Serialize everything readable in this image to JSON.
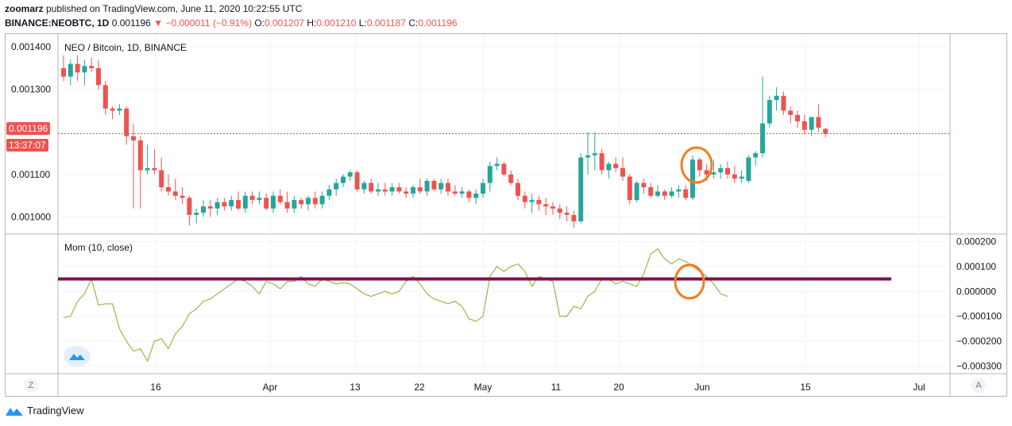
{
  "header": {
    "publisher_user": "zoomarz",
    "published_text": "published on TradingView.com, June 11, 2020 10:22:55 UTC",
    "symbol": "BINANCE:NEOBTC, 1D",
    "last": "0.001196",
    "change": "−0.000011 (−0.91%)",
    "o_label": "O:",
    "o_val": "0.001207",
    "h_label": "H:",
    "h_val": "0.001210",
    "l_label": "L:",
    "l_val": "0.001187",
    "c_label": "C:",
    "c_val": "0.001196"
  },
  "main_pane": {
    "title": "NEO / Bitcoin, 1D, BINANCE",
    "current_price": "0.001196",
    "countdown": "13:37:07"
  },
  "indicator_pane": {
    "title": "Mom (10, close)"
  },
  "footer": {
    "brand": "TradingView",
    "left_corner": "Z",
    "right_corner": "A"
  },
  "colors": {
    "up": "#26a69a",
    "down": "#ef5350",
    "momentum_line": "#a7b04a",
    "hline": "#7b1451",
    "annotation": "#f57c20",
    "price_line": "#ef5350"
  },
  "chart_data": [
    {
      "type": "candlestick",
      "title": "NEO / Bitcoin, 1D, BINANCE",
      "x_ticks": [
        "16",
        "Apr",
        "13",
        "22",
        "May",
        "11",
        "20",
        "Jun",
        "15",
        "Jul"
      ],
      "y_ticks": [
        "0.001400",
        "0.001300",
        "0.001100",
        "0.001000"
      ],
      "ylim": [
        0.00096,
        0.00143
      ],
      "candles": [
        [
          0.00135,
          0.00138,
          0.00132,
          0.00133
        ],
        [
          0.00133,
          0.00137,
          0.00131,
          0.00136
        ],
        [
          0.00136,
          0.00138,
          0.00132,
          0.00134
        ],
        [
          0.00134,
          0.00137,
          0.00131,
          0.001355
        ],
        [
          0.001355,
          0.001375,
          0.00134,
          0.00135
        ],
        [
          0.00135,
          0.00137,
          0.0013,
          0.00131
        ],
        [
          0.00131,
          0.00132,
          0.00124,
          0.001255
        ],
        [
          0.001255,
          0.00126,
          0.00123,
          0.00125
        ],
        [
          0.00125,
          0.001265,
          0.00124,
          0.001255
        ],
        [
          0.001255,
          0.00126,
          0.00117,
          0.00119
        ],
        [
          0.00119,
          0.00122,
          0.00102,
          0.00118
        ],
        [
          0.00118,
          0.00119,
          0.00102,
          0.00111
        ],
        [
          0.00111,
          0.00117,
          0.0011,
          0.001115
        ],
        [
          0.001115,
          0.00116,
          0.0011,
          0.00111
        ],
        [
          0.00111,
          0.00114,
          0.00106,
          0.00107
        ],
        [
          0.00107,
          0.0011,
          0.00105,
          0.00106
        ],
        [
          0.00106,
          0.00109,
          0.00104,
          0.00105
        ],
        [
          0.00105,
          0.00107,
          0.00103,
          0.001045
        ],
        [
          0.001045,
          0.00105,
          0.00098,
          0.001005
        ],
        [
          0.001005,
          0.00102,
          0.000985,
          0.00101
        ],
        [
          0.00101,
          0.00104,
          0.001,
          0.001025
        ],
        [
          0.001025,
          0.00104,
          0.001,
          0.00102
        ],
        [
          0.00102,
          0.001045,
          0.001005,
          0.001035
        ],
        [
          0.001035,
          0.001045,
          0.001015,
          0.001025
        ],
        [
          0.001025,
          0.00105,
          0.001015,
          0.00104
        ],
        [
          0.00104,
          0.00106,
          0.001015,
          0.00102
        ],
        [
          0.00102,
          0.00106,
          0.00101,
          0.00105
        ],
        [
          0.00105,
          0.00106,
          0.00103,
          0.00104
        ],
        [
          0.00104,
          0.00106,
          0.00103,
          0.001045
        ],
        [
          0.001045,
          0.001055,
          0.001015,
          0.00102
        ],
        [
          0.00102,
          0.00106,
          0.00101,
          0.00105
        ],
        [
          0.00105,
          0.001065,
          0.00103,
          0.001035
        ],
        [
          0.001035,
          0.00106,
          0.00101,
          0.00102
        ],
        [
          0.00102,
          0.00105,
          0.00101,
          0.00104
        ],
        [
          0.00104,
          0.001045,
          0.00102,
          0.00103
        ],
        [
          0.00103,
          0.00105,
          0.001015,
          0.001045
        ],
        [
          0.001045,
          0.00106,
          0.00102,
          0.00103
        ],
        [
          0.00103,
          0.00106,
          0.00102,
          0.00105
        ],
        [
          0.00105,
          0.001075,
          0.00104,
          0.001065
        ],
        [
          0.001065,
          0.00109,
          0.00105,
          0.00108
        ],
        [
          0.00108,
          0.0011,
          0.00107,
          0.001095
        ],
        [
          0.001095,
          0.00111,
          0.001085,
          0.001105
        ],
        [
          0.001105,
          0.00111,
          0.00106,
          0.001065
        ],
        [
          0.001065,
          0.001085,
          0.001055,
          0.00108
        ],
        [
          0.00108,
          0.00109,
          0.001055,
          0.00106
        ],
        [
          0.00106,
          0.00108,
          0.00105,
          0.001065
        ],
        [
          0.001065,
          0.00108,
          0.00105,
          0.00106
        ],
        [
          0.00106,
          0.00108,
          0.00105,
          0.00107
        ],
        [
          0.00107,
          0.00108,
          0.001055,
          0.00106
        ],
        [
          0.00106,
          0.00107,
          0.001045,
          0.001055
        ],
        [
          0.001055,
          0.001075,
          0.001045,
          0.00107
        ],
        [
          0.00107,
          0.00109,
          0.001055,
          0.00106
        ],
        [
          0.00106,
          0.00109,
          0.00105,
          0.001085
        ],
        [
          0.001085,
          0.00109,
          0.00106,
          0.001065
        ],
        [
          0.001065,
          0.00109,
          0.001055,
          0.00108
        ],
        [
          0.00108,
          0.00109,
          0.00105,
          0.00106
        ],
        [
          0.00106,
          0.001075,
          0.00105,
          0.001055
        ],
        [
          0.001055,
          0.00107,
          0.001045,
          0.00106
        ],
        [
          0.00106,
          0.001065,
          0.001035,
          0.001045
        ],
        [
          0.001045,
          0.001065,
          0.00103,
          0.001055
        ],
        [
          0.001055,
          0.00109,
          0.001045,
          0.00108
        ],
        [
          0.00108,
          0.00113,
          0.00106,
          0.00112
        ],
        [
          0.00112,
          0.00114,
          0.00111,
          0.001125
        ],
        [
          0.001125,
          0.00113,
          0.001095,
          0.0011
        ],
        [
          0.0011,
          0.00111,
          0.001075,
          0.00108
        ],
        [
          0.00108,
          0.00109,
          0.00104,
          0.00105
        ],
        [
          0.00105,
          0.00106,
          0.00102,
          0.001035
        ],
        [
          0.001035,
          0.001055,
          0.00101,
          0.00104
        ],
        [
          0.00104,
          0.00105,
          0.001015,
          0.00103
        ],
        [
          0.00103,
          0.001045,
          0.001005,
          0.001025
        ],
        [
          0.001025,
          0.001035,
          0.001005,
          0.00102
        ],
        [
          0.00102,
          0.00103,
          0.000995,
          0.00101
        ],
        [
          0.00101,
          0.001025,
          0.00099,
          0.001005
        ],
        [
          0.001005,
          0.001015,
          0.000975,
          0.00099
        ],
        [
          0.00099,
          0.00115,
          0.000985,
          0.00114
        ],
        [
          0.00114,
          0.0012,
          0.0011,
          0.001145
        ],
        [
          0.001145,
          0.0012,
          0.00111,
          0.00115
        ],
        [
          0.00115,
          0.00116,
          0.0011,
          0.00111
        ],
        [
          0.00111,
          0.00113,
          0.00109,
          0.001125
        ],
        [
          0.001125,
          0.00114,
          0.001105,
          0.001115
        ],
        [
          0.001115,
          0.00114,
          0.001085,
          0.001095
        ],
        [
          0.001095,
          0.0011,
          0.00103,
          0.00104
        ],
        [
          0.00104,
          0.001085,
          0.001035,
          0.00108
        ],
        [
          0.00108,
          0.00109,
          0.001055,
          0.00107
        ],
        [
          0.00107,
          0.00108,
          0.001045,
          0.00105
        ],
        [
          0.00105,
          0.001075,
          0.001045,
          0.00106
        ],
        [
          0.00106,
          0.001065,
          0.00104,
          0.00105
        ],
        [
          0.00105,
          0.00107,
          0.001045,
          0.00106
        ],
        [
          0.00106,
          0.001075,
          0.001045,
          0.001065
        ],
        [
          0.001065,
          0.001075,
          0.00104,
          0.001045
        ],
        [
          0.001045,
          0.001145,
          0.00104,
          0.001135
        ],
        [
          0.001135,
          0.00114,
          0.001095,
          0.00111
        ],
        [
          0.00111,
          0.001125,
          0.001085,
          0.0011
        ],
        [
          0.0011,
          0.001135,
          0.00109,
          0.001105
        ],
        [
          0.001105,
          0.001125,
          0.00109,
          0.001115
        ],
        [
          0.001115,
          0.00113,
          0.00109,
          0.0011
        ],
        [
          0.0011,
          0.00112,
          0.00108,
          0.00109
        ],
        [
          0.00109,
          0.00111,
          0.00108,
          0.001095
        ],
        [
          0.001085,
          0.001145,
          0.00108,
          0.00114
        ],
        [
          0.00114,
          0.001155,
          0.00112,
          0.00115
        ],
        [
          0.00115,
          0.00133,
          0.00114,
          0.00122
        ],
        [
          0.00122,
          0.001285,
          0.00121,
          0.001275
        ],
        [
          0.001275,
          0.001305,
          0.00125,
          0.001285
        ],
        [
          0.001285,
          0.001295,
          0.00124,
          0.00125
        ],
        [
          0.00125,
          0.00126,
          0.00122,
          0.00124
        ],
        [
          0.00124,
          0.00125,
          0.00121,
          0.001225
        ],
        [
          0.001225,
          0.00124,
          0.001195,
          0.001205
        ],
        [
          0.001205,
          0.001235,
          0.00119,
          0.001235
        ],
        [
          0.001235,
          0.001265,
          0.0012,
          0.00121
        ],
        [
          0.001207,
          0.00121,
          0.001187,
          0.001196
        ]
      ]
    },
    {
      "type": "line",
      "title": "Mom (10, close)",
      "y_ticks": [
        "0.000200",
        "0.000100",
        "0.000000",
        "−0.000100",
        "−0.000200",
        "−0.000300"
      ],
      "ylim": [
        -0.00033,
        0.00023
      ],
      "series": [
        {
          "name": "Mom (10, close)",
          "values": [
            -0.000105,
            -0.0001,
            -4e-05,
            -1e-05,
            5e-05,
            -5.5e-05,
            -5e-05,
            -5e-05,
            -0.00015,
            -0.0002,
            -0.00024,
            -0.00023,
            -0.00028,
            -0.0002,
            -0.00019,
            -0.00023,
            -0.00017,
            -0.00014,
            -9e-05,
            -7e-05,
            -4e-05,
            -3e-05,
            -1e-05,
            1e-05,
            3e-05,
            5e-05,
            4e-05,
            2e-05,
            -1e-05,
            4e-05,
            3e-05,
            1e-05,
            4e-05,
            4e-05,
            6e-05,
            3e-05,
            2e-05,
            5e-05,
            4e-05,
            3e-05,
            3.5e-05,
            3e-05,
            1e-05,
            -1e-05,
            -2e-05,
            -1e-05,
            0.0,
            -1e-05,
            0.0,
            4e-05,
            6e-05,
            3e-05,
            -1e-05,
            -3e-05,
            -4e-05,
            -5e-05,
            -4e-05,
            -6e-05,
            -0.00011,
            -0.00012,
            -0.0001,
            6e-05,
            0.0001,
            8e-05,
            0.0001,
            0.00011,
            8e-05,
            2e-05,
            6e-05,
            5e-05,
            4e-05,
            -0.0001,
            -0.0001,
            -6e-05,
            -7e-05,
            -2e-05,
            0.0,
            5e-05,
            5e-05,
            3e-05,
            4e-05,
            3e-05,
            2e-05,
            7e-05,
            0.00015,
            0.00017,
            0.00013,
            0.00011,
            0.00013,
            0.00012,
            0.0001,
            8e-05,
            6e-05,
            3e-05,
            -1e-05,
            -2e-05
          ]
        }
      ],
      "hline": 5e-05
    }
  ]
}
